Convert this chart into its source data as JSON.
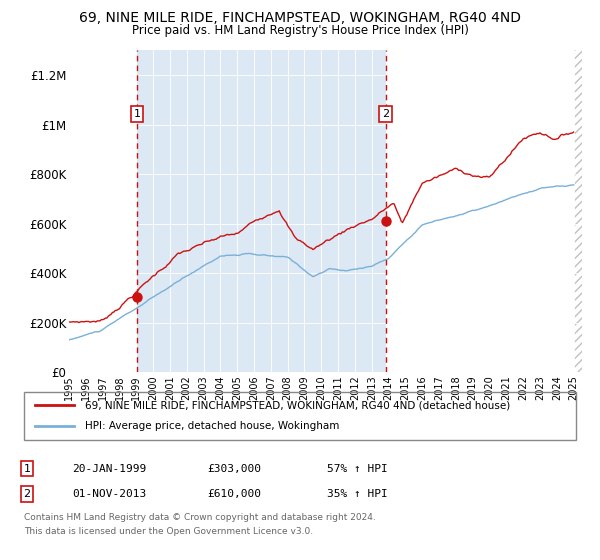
{
  "title": "69, NINE MILE RIDE, FINCHAMPSTEAD, WOKINGHAM, RG40 4ND",
  "subtitle": "Price paid vs. HM Land Registry's House Price Index (HPI)",
  "background_color": "#dce9f5",
  "hatch_color": "#c8d8ea",
  "grid_color": "#ffffff",
  "hpi_color": "#7ab0d8",
  "price_color": "#cc1111",
  "marker_color": "#cc1111",
  "vline_color": "#cc1111",
  "ylim": [
    0,
    1300000
  ],
  "yticks": [
    0,
    200000,
    400000,
    600000,
    800000,
    1000000,
    1200000
  ],
  "ytick_labels": [
    "£0",
    "£200K",
    "£400K",
    "£600K",
    "£800K",
    "£1M",
    "£1.2M"
  ],
  "sale1_year": 1999.05,
  "sale1_price": 303000,
  "sale2_year": 2013.83,
  "sale2_price": 610000,
  "legend_line1": "69, NINE MILE RIDE, FINCHAMPSTEAD, WOKINGHAM, RG40 4ND (detached house)",
  "legend_line2": "HPI: Average price, detached house, Wokingham",
  "footer1": "Contains HM Land Registry data © Crown copyright and database right 2024.",
  "footer2": "This data is licensed under the Open Government Licence v3.0."
}
